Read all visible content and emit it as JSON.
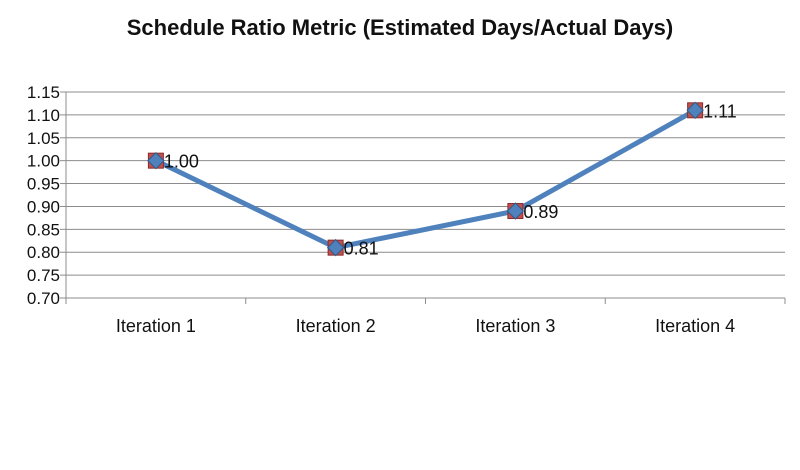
{
  "chart_data": {
    "type": "line",
    "title": "Schedule Ratio Metric (Estimated Days/Actual Days)",
    "xlabel": "",
    "ylabel": "",
    "categories": [
      "Iteration 1",
      "Iteration 2",
      "Iteration 3",
      "Iteration 4"
    ],
    "series": [
      {
        "values": [
          1.0,
          0.81,
          0.89,
          1.11
        ],
        "data_labels": [
          "1.00",
          "0.81",
          "0.89",
          "1.11"
        ],
        "color": "#4f81bd",
        "marker_color": "#c0504d"
      }
    ],
    "ylim": [
      0.7,
      1.15
    ],
    "yticks": [
      "0.70",
      "0.75",
      "0.80",
      "0.85",
      "0.90",
      "0.95",
      "1.00",
      "1.05",
      "1.10",
      "1.15"
    ],
    "grid": "horizontal",
    "legend": "none"
  }
}
